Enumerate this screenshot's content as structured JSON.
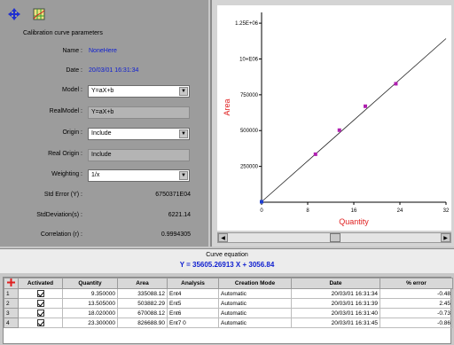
{
  "toolbar": {
    "icons": [
      "diamond-arrows-icon",
      "grid-chart-icon"
    ]
  },
  "params": {
    "title": "Calibration curve parameters",
    "name_label": "Name :",
    "name_value": "NoneHere",
    "date_label": "Date :",
    "date_value": "20/03/01 16:31:34",
    "model_label": "Model :",
    "model_value": "Y=aX+b",
    "real_model_label": "RealModel :",
    "real_model_value": "Y=aX+b",
    "origin_label": "Origin :",
    "origin_value": "Include",
    "real_origin_label": "Real Origin :",
    "real_origin_value": "Include",
    "weighting_label": "Weighting :",
    "weighting_value": "1/x",
    "std_error_label": "Std Error (Y) :",
    "std_error_value": "6750371E04",
    "std_dev_label": "StdDeviation(s) :",
    "std_dev_value": "6221.14",
    "correlation_label": "Correlation (r) :",
    "correlation_value": "0.9994305"
  },
  "chart_data": {
    "type": "scatter",
    "xlabel": "Quantity",
    "ylabel": "Area",
    "xlim": [
      0,
      32
    ],
    "ylim": [
      0,
      1050000
    ],
    "x_ticks": [
      "0",
      "8",
      "16",
      "24",
      "32"
    ],
    "y_ticks": [
      "250000",
      "500000",
      "750000",
      "10+E06",
      "1.25E+06"
    ],
    "x": [
      0,
      9.35,
      13.5,
      18.0,
      23.3
    ],
    "y": [
      3056,
      335000,
      503000,
      670000,
      827000
    ],
    "fit_line": {
      "slope": 35605.26913,
      "intercept": 3056.84
    },
    "colors": {
      "points": "#b020b0",
      "line": "#202020",
      "axis_label": "#e02020"
    }
  },
  "equation": {
    "label": "Curve equation",
    "value": "Y = 35605.26913 X + 3056.84"
  },
  "table": {
    "headers": [
      "Activated",
      "Quantity",
      "Area",
      "Analysis",
      "Creation Mode",
      "Date",
      "% error"
    ],
    "rows": [
      {
        "num": "1",
        "quantity": "9.350000",
        "area": "335088.12",
        "analysis": "Ent4",
        "mode": "Automatic",
        "date": "20/03/01 16:31:34",
        "error": "-0.48"
      },
      {
        "num": "2",
        "quantity": "13.505000",
        "area": "503882.29",
        "analysis": "Ent5",
        "mode": "Automatic",
        "date": "20/03/01 16:31:39",
        "error": "2.45"
      },
      {
        "num": "3",
        "quantity": "18.020000",
        "area": "670088.12",
        "analysis": "Ent6",
        "mode": "Automatic",
        "date": "20/03/01 16:31:40",
        "error": "-0.73"
      },
      {
        "num": "4",
        "quantity": "23.300000",
        "area": "826688.90",
        "analysis": "Ent7 0",
        "mode": "Automatic",
        "date": "20/03/01 16:31:45",
        "error": "-0.86"
      }
    ]
  }
}
